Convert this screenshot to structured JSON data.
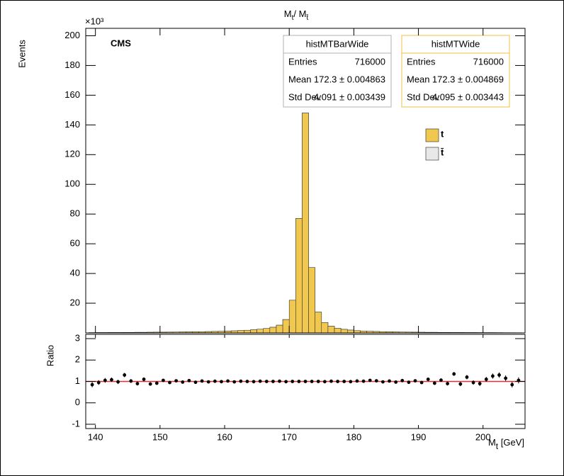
{
  "chart_data": [
    {
      "type": "histogram",
      "title": [
        "M",
        "t",
        "/ M",
        "t̄"
      ],
      "ylabel": "Events",
      "axis_multiplier": "×10³",
      "label": "CMS",
      "bins": [
        139,
        140,
        141,
        142,
        143,
        144,
        145,
        146,
        147,
        148,
        149,
        150,
        151,
        152,
        153,
        154,
        155,
        156,
        157,
        158,
        159,
        160,
        161,
        162,
        163,
        164,
        165,
        166,
        167,
        168,
        169,
        170,
        171,
        172,
        173,
        174,
        175,
        176,
        177,
        178,
        179,
        180,
        181,
        182,
        183,
        184,
        185,
        186,
        187,
        188,
        189,
        190,
        191,
        192,
        193,
        194,
        195,
        196,
        197,
        198,
        199,
        200,
        201,
        202,
        203,
        204,
        205,
        206
      ],
      "series": [
        {
          "name": "t̄",
          "color": "#e8e8e8",
          "values": [
            0.2,
            0.25,
            0.25,
            0.3,
            0.3,
            0.35,
            0.35,
            0.4,
            0.4,
            0.45,
            0.5,
            0.5,
            0.55,
            0.6,
            0.65,
            0.7,
            0.75,
            0.8,
            0.9,
            1.0,
            1.1,
            1.2,
            1.4,
            1.6,
            1.8,
            2.1,
            2.5,
            3.0,
            3.8,
            5.2,
            9,
            22,
            77,
            148,
            44,
            14,
            7,
            4.5,
            3.2,
            2.4,
            1.9,
            1.5,
            1.3,
            1.1,
            0.95,
            0.85,
            0.75,
            0.65,
            0.6,
            0.55,
            0.5,
            0.45,
            0.4,
            0.4,
            0.35,
            0.35,
            0.3,
            0.3,
            0.25,
            0.25,
            0.22,
            0.2,
            0.2,
            0.18,
            0.16,
            0.15,
            0.14
          ]
        },
        {
          "name": "t",
          "color": "#f0c850",
          "values": [
            0.2,
            0.25,
            0.25,
            0.3,
            0.3,
            0.35,
            0.35,
            0.4,
            0.4,
            0.45,
            0.5,
            0.5,
            0.55,
            0.6,
            0.65,
            0.7,
            0.75,
            0.8,
            0.9,
            1.0,
            1.1,
            1.2,
            1.4,
            1.6,
            1.8,
            2.1,
            2.5,
            3.0,
            3.8,
            5.2,
            9,
            22,
            77,
            148,
            44,
            14,
            7,
            4.5,
            3.2,
            2.4,
            1.9,
            1.5,
            1.3,
            1.1,
            0.95,
            0.85,
            0.75,
            0.65,
            0.6,
            0.55,
            0.5,
            0.45,
            0.4,
            0.4,
            0.35,
            0.35,
            0.3,
            0.3,
            0.25,
            0.25,
            0.22,
            0.2,
            0.2,
            0.18,
            0.16,
            0.15,
            0.14
          ]
        }
      ],
      "xlim": [
        138.5,
        206.5
      ],
      "xticks": [
        140,
        150,
        160,
        170,
        180,
        190,
        200
      ],
      "ylim": [
        0,
        205
      ],
      "yticks": [
        20,
        40,
        60,
        80,
        100,
        120,
        140,
        160,
        180,
        200
      ],
      "stat_boxes": [
        {
          "title": "histMTBarWide",
          "border": "#b0b0b0",
          "rows": [
            [
              "Entries",
              "716000"
            ],
            [
              "Mean",
              "172.3 ± 0.004863"
            ],
            [
              "Std Dev",
              "4.091 ± 0.003439"
            ]
          ]
        },
        {
          "title": "histMTWide",
          "border": "#f0c040",
          "rows": [
            [
              "Entries",
              "716000"
            ],
            [
              "Mean",
              "172.3 ± 0.004869"
            ],
            [
              "Std Dev",
              "4.095 ± 0.003443"
            ]
          ]
        }
      ]
    },
    {
      "type": "errorbar",
      "ylabel": "Ratio",
      "xlabel": [
        "M",
        "t",
        " [GeV]"
      ],
      "x": [
        139.5,
        140.5,
        141.5,
        142.5,
        143.5,
        144.5,
        145.5,
        146.5,
        147.5,
        148.5,
        149.5,
        150.5,
        151.5,
        152.5,
        153.5,
        154.5,
        155.5,
        156.5,
        157.5,
        158.5,
        159.5,
        160.5,
        161.5,
        162.5,
        163.5,
        164.5,
        165.5,
        166.5,
        167.5,
        168.5,
        169.5,
        170.5,
        171.5,
        172.5,
        173.5,
        174.5,
        175.5,
        176.5,
        177.5,
        178.5,
        179.5,
        180.5,
        181.5,
        182.5,
        183.5,
        184.5,
        185.5,
        186.5,
        187.5,
        188.5,
        189.5,
        190.5,
        191.5,
        192.5,
        193.5,
        194.5,
        195.5,
        196.5,
        197.5,
        198.5,
        199.5,
        200.5,
        201.5,
        202.5,
        203.5,
        204.5,
        205.5
      ],
      "values": [
        0.85,
        0.95,
        1.05,
        1.08,
        0.98,
        1.3,
        1.02,
        0.9,
        1.1,
        0.88,
        0.92,
        1.05,
        0.95,
        1.03,
        0.97,
        1.04,
        0.96,
        1.02,
        0.98,
        1.01,
        0.99,
        1.02,
        0.98,
        1.01,
        1.0,
        0.99,
        1.01,
        1.0,
        1.0,
        1.01,
        0.99,
        1.0,
        1.0,
        1.0,
        1.0,
        1.0,
        0.99,
        1.01,
        1.0,
        1.0,
        0.99,
        1.02,
        1.01,
        1.05,
        1.03,
        0.98,
        1.02,
        0.97,
        1.04,
        0.96,
        1.03,
        0.95,
        1.1,
        0.92,
        1.06,
        0.9,
        1.35,
        0.88,
        1.2,
        0.95,
        0.9,
        1.1,
        1.25,
        1.3,
        1.15,
        0.85,
        1.05
      ],
      "errors": [
        0.12,
        0.11,
        0.11,
        0.1,
        0.1,
        0.1,
        0.09,
        0.09,
        0.09,
        0.08,
        0.08,
        0.08,
        0.07,
        0.07,
        0.07,
        0.06,
        0.06,
        0.06,
        0.05,
        0.05,
        0.05,
        0.04,
        0.04,
        0.04,
        0.03,
        0.03,
        0.03,
        0.02,
        0.02,
        0.01,
        0.01,
        0.005,
        0.005,
        0.01,
        0.01,
        0.02,
        0.02,
        0.03,
        0.03,
        0.03,
        0.04,
        0.04,
        0.04,
        0.05,
        0.05,
        0.05,
        0.06,
        0.06,
        0.06,
        0.07,
        0.07,
        0.07,
        0.08,
        0.08,
        0.08,
        0.09,
        0.09,
        0.1,
        0.1,
        0.1,
        0.11,
        0.11,
        0.12,
        0.12,
        0.13,
        0.13,
        0.14
      ],
      "color": "#000000",
      "reference_line": 1,
      "reference_color": "#e03030",
      "xlim": [
        138.5,
        206.5
      ],
      "xticks": [
        140,
        150,
        160,
        170,
        180,
        190,
        200
      ],
      "ylim": [
        -1.2,
        3.2
      ],
      "yticks": [
        -1,
        0,
        1,
        2,
        3
      ]
    }
  ]
}
